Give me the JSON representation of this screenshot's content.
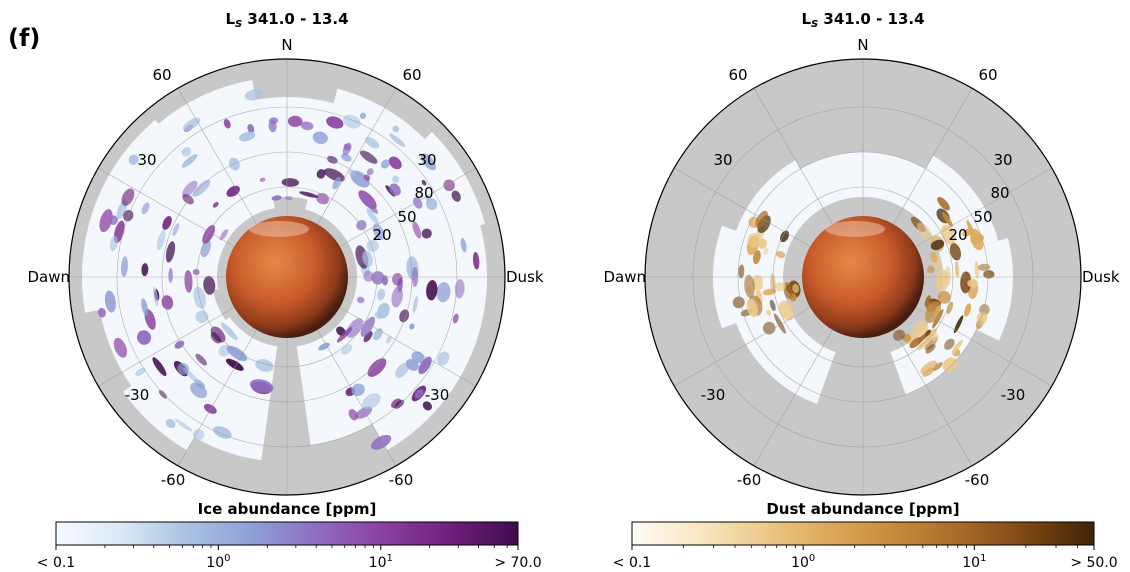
{
  "panel_label": "(f)",
  "colors": {
    "background_gray": "#c8c8c8",
    "ice_scale": [
      "#f7fbff",
      "#dbe8f6",
      "#a9c2e2",
      "#8d9fd6",
      "#8e6bc0",
      "#8a3f9f",
      "#6d1f7a",
      "#3f0b4d"
    ],
    "dust_scale": [
      "#fffdf6",
      "#f7e8c3",
      "#ecca8a",
      "#dca85a",
      "#c78a3a",
      "#a86a26",
      "#7a4712",
      "#3f2306"
    ],
    "mars": [
      "#e07a3c",
      "#c4562a",
      "#7a2e16"
    ]
  },
  "chart_data": [
    {
      "type": "heatmap",
      "projection": "polar",
      "title_prefix": "L",
      "title_subscript": "S",
      "title_value": " 341.0 - 13.4",
      "top_label": "N",
      "left_label": "Dawn",
      "right_label": "Dusk",
      "outer_angle_labels": [
        "60",
        "60",
        "30",
        "30",
        "-30",
        "-30",
        "-60",
        "-60"
      ],
      "radial_tick_labels": [
        "20",
        "50",
        "80"
      ],
      "colorbar": {
        "label": "Ice abundance [ppm]",
        "scale": "log",
        "min": 0.1,
        "max": 70.0,
        "min_label": "< 0.1",
        "max_label": "> 70.0",
        "ticks": [
          {
            "value": 1,
            "base": "10",
            "exp": "0"
          },
          {
            "value": 10,
            "base": "10",
            "exp": "1"
          }
        ]
      }
    },
    {
      "type": "heatmap",
      "projection": "polar",
      "title_prefix": "L",
      "title_subscript": "S",
      "title_value": " 341.0 - 13.4",
      "top_label": "N",
      "left_label": "Dawn",
      "right_label": "Dusk",
      "outer_angle_labels": [
        "60",
        "60",
        "30",
        "30",
        "-30",
        "-30",
        "-60",
        "-60"
      ],
      "radial_tick_labels": [
        "20",
        "50",
        "80"
      ],
      "colorbar": {
        "label": "Dust abundance [ppm]",
        "scale": "log",
        "min": 0.1,
        "max": 50.0,
        "min_label": "< 0.1",
        "max_label": "> 50.0",
        "ticks": [
          {
            "value": 1,
            "base": "10",
            "exp": "0"
          },
          {
            "value": 10,
            "base": "10",
            "exp": "1"
          }
        ]
      }
    }
  ]
}
